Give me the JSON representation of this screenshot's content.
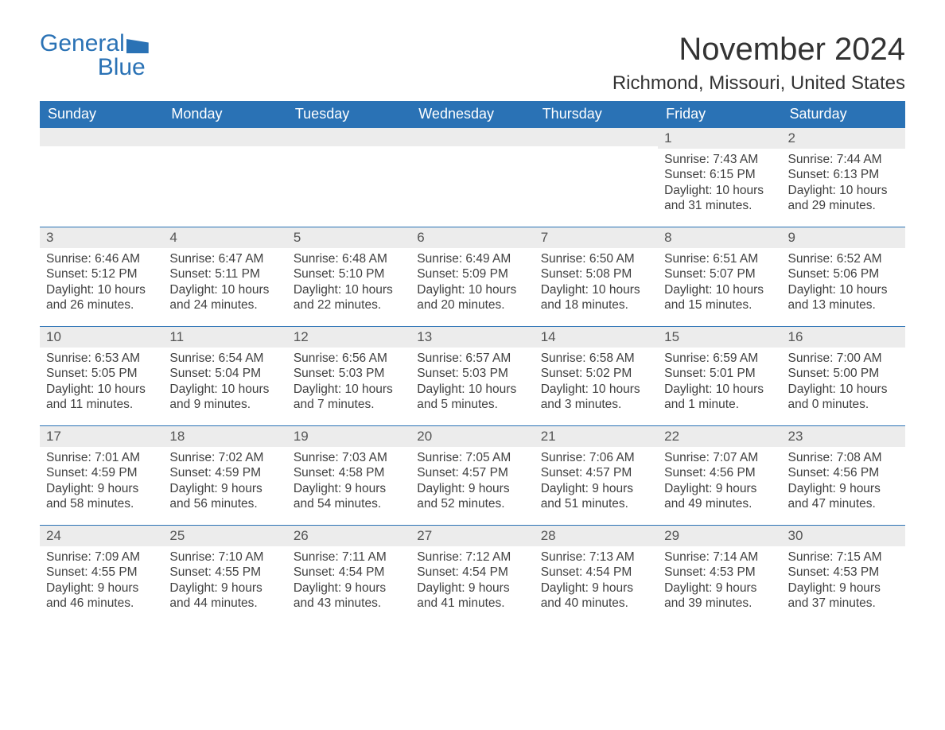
{
  "logo": {
    "text1": "General",
    "text2": "Blue"
  },
  "title": "November 2024",
  "location": "Richmond, Missouri, United States",
  "colors": {
    "header_bg": "#2a72b5",
    "header_text": "#ffffff",
    "daynum_bg": "#ececec",
    "daynum_border": "#2a72b5",
    "body_text": "#404040",
    "page_bg": "#ffffff",
    "logo_color": "#2a72b5"
  },
  "typography": {
    "title_fontsize": 40,
    "location_fontsize": 24,
    "weekday_fontsize": 18,
    "daynum_fontsize": 17,
    "cell_fontsize": 15.5
  },
  "weekdays": [
    "Sunday",
    "Monday",
    "Tuesday",
    "Wednesday",
    "Thursday",
    "Friday",
    "Saturday"
  ],
  "weeks": [
    [
      null,
      null,
      null,
      null,
      null,
      {
        "n": "1",
        "sunrise": "7:43 AM",
        "sunset": "6:15 PM",
        "daylight": "10 hours and 31 minutes."
      },
      {
        "n": "2",
        "sunrise": "7:44 AM",
        "sunset": "6:13 PM",
        "daylight": "10 hours and 29 minutes."
      }
    ],
    [
      {
        "n": "3",
        "sunrise": "6:46 AM",
        "sunset": "5:12 PM",
        "daylight": "10 hours and 26 minutes."
      },
      {
        "n": "4",
        "sunrise": "6:47 AM",
        "sunset": "5:11 PM",
        "daylight": "10 hours and 24 minutes."
      },
      {
        "n": "5",
        "sunrise": "6:48 AM",
        "sunset": "5:10 PM",
        "daylight": "10 hours and 22 minutes."
      },
      {
        "n": "6",
        "sunrise": "6:49 AM",
        "sunset": "5:09 PM",
        "daylight": "10 hours and 20 minutes."
      },
      {
        "n": "7",
        "sunrise": "6:50 AM",
        "sunset": "5:08 PM",
        "daylight": "10 hours and 18 minutes."
      },
      {
        "n": "8",
        "sunrise": "6:51 AM",
        "sunset": "5:07 PM",
        "daylight": "10 hours and 15 minutes."
      },
      {
        "n": "9",
        "sunrise": "6:52 AM",
        "sunset": "5:06 PM",
        "daylight": "10 hours and 13 minutes."
      }
    ],
    [
      {
        "n": "10",
        "sunrise": "6:53 AM",
        "sunset": "5:05 PM",
        "daylight": "10 hours and 11 minutes."
      },
      {
        "n": "11",
        "sunrise": "6:54 AM",
        "sunset": "5:04 PM",
        "daylight": "10 hours and 9 minutes."
      },
      {
        "n": "12",
        "sunrise": "6:56 AM",
        "sunset": "5:03 PM",
        "daylight": "10 hours and 7 minutes."
      },
      {
        "n": "13",
        "sunrise": "6:57 AM",
        "sunset": "5:03 PM",
        "daylight": "10 hours and 5 minutes."
      },
      {
        "n": "14",
        "sunrise": "6:58 AM",
        "sunset": "5:02 PM",
        "daylight": "10 hours and 3 minutes."
      },
      {
        "n": "15",
        "sunrise": "6:59 AM",
        "sunset": "5:01 PM",
        "daylight": "10 hours and 1 minute."
      },
      {
        "n": "16",
        "sunrise": "7:00 AM",
        "sunset": "5:00 PM",
        "daylight": "10 hours and 0 minutes."
      }
    ],
    [
      {
        "n": "17",
        "sunrise": "7:01 AM",
        "sunset": "4:59 PM",
        "daylight": "9 hours and 58 minutes."
      },
      {
        "n": "18",
        "sunrise": "7:02 AM",
        "sunset": "4:59 PM",
        "daylight": "9 hours and 56 minutes."
      },
      {
        "n": "19",
        "sunrise": "7:03 AM",
        "sunset": "4:58 PM",
        "daylight": "9 hours and 54 minutes."
      },
      {
        "n": "20",
        "sunrise": "7:05 AM",
        "sunset": "4:57 PM",
        "daylight": "9 hours and 52 minutes."
      },
      {
        "n": "21",
        "sunrise": "7:06 AM",
        "sunset": "4:57 PM",
        "daylight": "9 hours and 51 minutes."
      },
      {
        "n": "22",
        "sunrise": "7:07 AM",
        "sunset": "4:56 PM",
        "daylight": "9 hours and 49 minutes."
      },
      {
        "n": "23",
        "sunrise": "7:08 AM",
        "sunset": "4:56 PM",
        "daylight": "9 hours and 47 minutes."
      }
    ],
    [
      {
        "n": "24",
        "sunrise": "7:09 AM",
        "sunset": "4:55 PM",
        "daylight": "9 hours and 46 minutes."
      },
      {
        "n": "25",
        "sunrise": "7:10 AM",
        "sunset": "4:55 PM",
        "daylight": "9 hours and 44 minutes."
      },
      {
        "n": "26",
        "sunrise": "7:11 AM",
        "sunset": "4:54 PM",
        "daylight": "9 hours and 43 minutes."
      },
      {
        "n": "27",
        "sunrise": "7:12 AM",
        "sunset": "4:54 PM",
        "daylight": "9 hours and 41 minutes."
      },
      {
        "n": "28",
        "sunrise": "7:13 AM",
        "sunset": "4:54 PM",
        "daylight": "9 hours and 40 minutes."
      },
      {
        "n": "29",
        "sunrise": "7:14 AM",
        "sunset": "4:53 PM",
        "daylight": "9 hours and 39 minutes."
      },
      {
        "n": "30",
        "sunrise": "7:15 AM",
        "sunset": "4:53 PM",
        "daylight": "9 hours and 37 minutes."
      }
    ]
  ],
  "labels": {
    "sunrise": "Sunrise: ",
    "sunset": "Sunset: ",
    "daylight": "Daylight: "
  }
}
